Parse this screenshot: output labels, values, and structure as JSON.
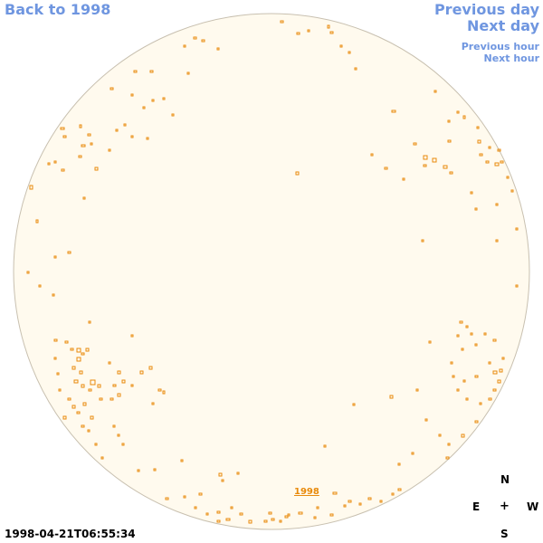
{
  "nav": {
    "back_label": "Back to 1998",
    "prev_day_label": "Previous day",
    "next_day_label": "Next day",
    "prev_hour_label": "Previous hour",
    "next_hour_label": "Next hour"
  },
  "disk": {
    "fill_color": "#fffaee",
    "border_color": "#c8c0b0",
    "feature_color": "#e88a0c"
  },
  "year_link": "1998",
  "compass": {
    "north": "N",
    "east": "E",
    "center": "+",
    "west": "W",
    "south": "S"
  },
  "timestamp": "1998-04-21T06:55:34"
}
